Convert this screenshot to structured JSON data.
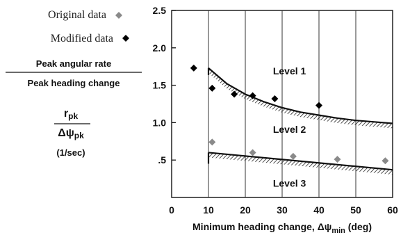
{
  "chart_data": {
    "type": "scatter",
    "xlabel": "Minimum heading change, Δψ",
    "xlabel_sub": "min",
    "xlabel_unit": " (deg)",
    "x_ticks": [
      "0",
      "10",
      "20",
      "30",
      "40",
      "50",
      "60"
    ],
    "y_ticks": [
      ".5",
      "1.0",
      "1.5",
      "2.0",
      "2.5"
    ],
    "xlim": [
      0,
      60
    ],
    "ylim": [
      0,
      2.5
    ],
    "grid": "vertical",
    "legend_position": "top-left",
    "ylabel": {
      "numerator": "Peak angular rate",
      "denominator": "Peak heading change",
      "symbol_num": "r",
      "symbol_num_sub": "pk",
      "symbol_den": "Δψ",
      "symbol_den_sub": "pk",
      "unit": "(1/sec)"
    },
    "series": [
      {
        "name": "Original data",
        "marker": "diamond",
        "color": "#8a8a8a",
        "points": [
          [
            11,
            0.74
          ],
          [
            22,
            0.6
          ],
          [
            33,
            0.55
          ],
          [
            45,
            0.51
          ],
          [
            58,
            0.49
          ]
        ]
      },
      {
        "name": "Modified data",
        "marker": "diamond",
        "color": "#000000",
        "points": [
          [
            6,
            1.73
          ],
          [
            11,
            1.46
          ],
          [
            17,
            1.38
          ],
          [
            22,
            1.36
          ],
          [
            28,
            1.32
          ],
          [
            40,
            1.23
          ]
        ]
      }
    ],
    "boundaries": [
      {
        "name": "Level 1/2 boundary",
        "points": [
          [
            10,
            1.73
          ],
          [
            15,
            1.52
          ],
          [
            20,
            1.38
          ],
          [
            25,
            1.28
          ],
          [
            30,
            1.2
          ],
          [
            35,
            1.14
          ],
          [
            40,
            1.1
          ],
          [
            45,
            1.06
          ],
          [
            50,
            1.03
          ],
          [
            55,
            1.01
          ],
          [
            60,
            0.99
          ]
        ]
      },
      {
        "name": "Level 2/3 boundary",
        "points": [
          [
            10,
            0.6
          ],
          [
            60,
            0.37
          ]
        ]
      }
    ],
    "annotations": [
      {
        "text": "Level 1",
        "x": 32,
        "y": 1.69
      },
      {
        "text": "Level 2",
        "x": 32,
        "y": 0.91
      },
      {
        "text": "Level 3",
        "x": 32,
        "y": 0.19
      }
    ]
  }
}
